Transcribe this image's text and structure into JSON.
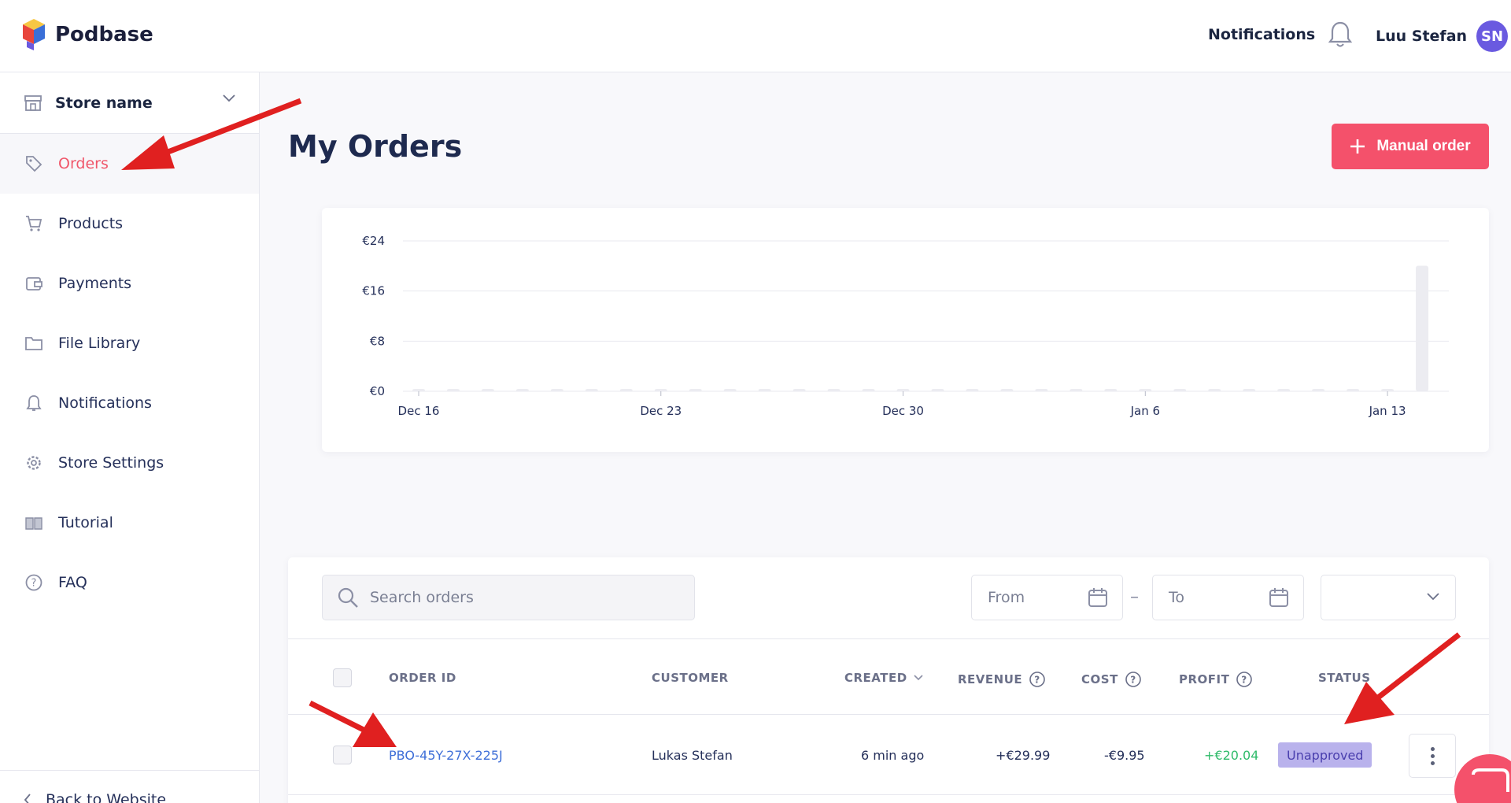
{
  "brand": {
    "name": "Podbase"
  },
  "header": {
    "notifications_label": "Notifications",
    "user_name": "Luu Stefan",
    "user_initials": "SN"
  },
  "sidebar": {
    "store_label": "Store name",
    "items": [
      {
        "label": "Orders",
        "icon": "tag-icon",
        "active": true
      },
      {
        "label": "Products",
        "icon": "cart-icon"
      },
      {
        "label": "Payments",
        "icon": "wallet-icon"
      },
      {
        "label": "File Library",
        "icon": "folder-icon"
      },
      {
        "label": "Notifications",
        "icon": "bell-icon"
      },
      {
        "label": "Store Settings",
        "icon": "gear-icon"
      },
      {
        "label": "Tutorial",
        "icon": "book-icon"
      },
      {
        "label": "FAQ",
        "icon": "question-icon"
      }
    ],
    "back_label": "Back to Website"
  },
  "main": {
    "title": "My Orders",
    "manual_order_label": "Manual order"
  },
  "chart_data": {
    "type": "bar",
    "title": "",
    "xlabel": "",
    "ylabel": "",
    "y_ticks": [
      "€0",
      "€8",
      "€16",
      "€24"
    ],
    "ylim": [
      0,
      24
    ],
    "x_ticks": [
      "Dec 16",
      "Dec 23",
      "Dec 30",
      "Jan 6",
      "Jan 13"
    ],
    "categories": [
      "Dec 16",
      "Dec 17",
      "Dec 18",
      "Dec 19",
      "Dec 20",
      "Dec 21",
      "Dec 22",
      "Dec 23",
      "Dec 24",
      "Dec 25",
      "Dec 26",
      "Dec 27",
      "Dec 28",
      "Dec 29",
      "Dec 30",
      "Dec 31",
      "Jan 1",
      "Jan 2",
      "Jan 3",
      "Jan 4",
      "Jan 5",
      "Jan 6",
      "Jan 7",
      "Jan 8",
      "Jan 9",
      "Jan 10",
      "Jan 11",
      "Jan 12",
      "Jan 13",
      "Jan 14"
    ],
    "values": [
      0,
      0,
      0,
      0,
      0,
      0,
      0,
      0,
      0,
      0,
      0,
      0,
      0,
      0,
      0,
      0,
      0,
      0,
      0,
      0,
      0,
      0,
      0,
      0,
      0,
      0,
      0,
      0,
      0,
      20.04
    ],
    "grid": true,
    "colors": {
      "bar": "#ececf1",
      "grid": "#e8e9ef"
    }
  },
  "orders": {
    "search_placeholder": "Search orders",
    "from_placeholder": "From",
    "to_placeholder": "To",
    "date_separator": "–",
    "columns": [
      "ORDER ID",
      "CUSTOMER",
      "CREATED",
      "REVENUE",
      "COST",
      "PROFIT",
      "STATUS"
    ],
    "rows": [
      {
        "order_id": "PBO-45Y-27X-225J",
        "customer": "Lukas Stefan",
        "created": "6 min ago",
        "revenue": "+€29.99",
        "cost": "-€9.95",
        "profit": "+€20.04",
        "status": "Unapproved"
      }
    ]
  },
  "colors": {
    "accent": "#f4516b",
    "active_nav": "#f0566a",
    "link": "#3f6fd8",
    "profit": "#2fbb6a",
    "badge_bg": "#b9b2ec",
    "annotation_arrow": "#e02020"
  }
}
